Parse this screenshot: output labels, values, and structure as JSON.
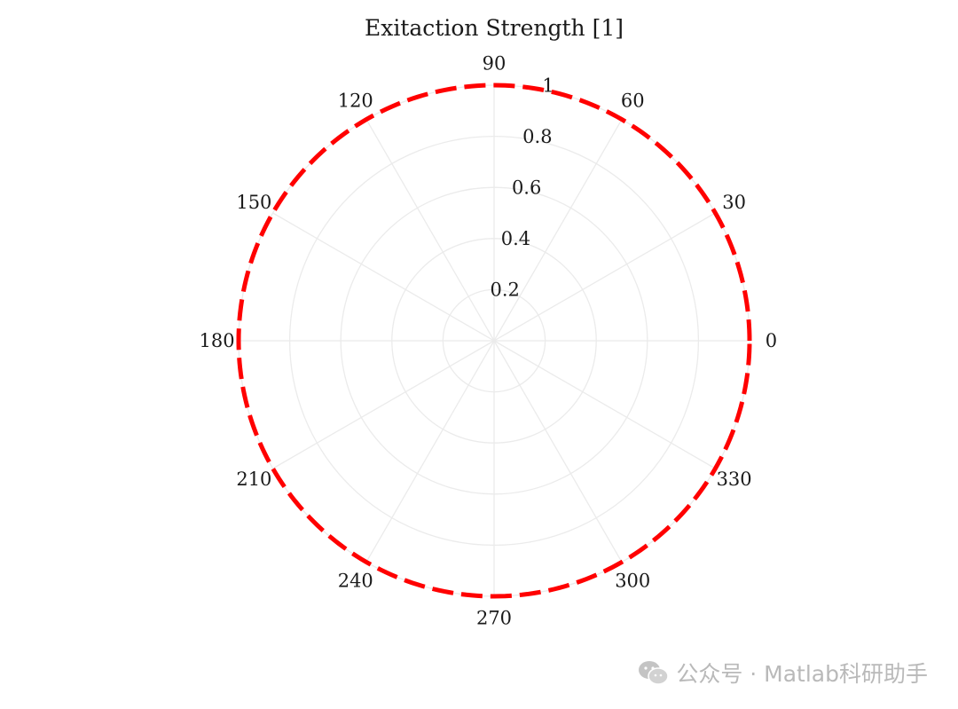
{
  "chart_data": {
    "type": "polar-line",
    "title": "Exitaction Strength [1]",
    "theta_ticks_deg": [
      "0",
      "30",
      "60",
      "90",
      "120",
      "150",
      "180",
      "210",
      "240",
      "270",
      "300",
      "330"
    ],
    "r_ticks": [
      "0.2",
      "0.4",
      "0.6",
      "0.8",
      "1"
    ],
    "rlim": [
      0,
      1
    ],
    "grid": true,
    "series": [
      {
        "theta_deg": [
          0,
          15,
          30,
          45,
          60,
          75,
          90,
          105,
          120,
          135,
          150,
          165,
          180,
          195,
          210,
          225,
          240,
          255,
          270,
          285,
          300,
          315,
          330,
          345,
          360
        ],
        "r": [
          1,
          1,
          1,
          1,
          1,
          1,
          1,
          1,
          1,
          1,
          1,
          1,
          1,
          1,
          1,
          1,
          1,
          1,
          1,
          1,
          1,
          1,
          1,
          1,
          1
        ],
        "color": "#ff0000",
        "line_style": "dashed"
      }
    ]
  },
  "watermark": {
    "text": "公众号 · Matlab科研助手",
    "icon": "wechat-icon",
    "color": "#b9b9b9"
  }
}
